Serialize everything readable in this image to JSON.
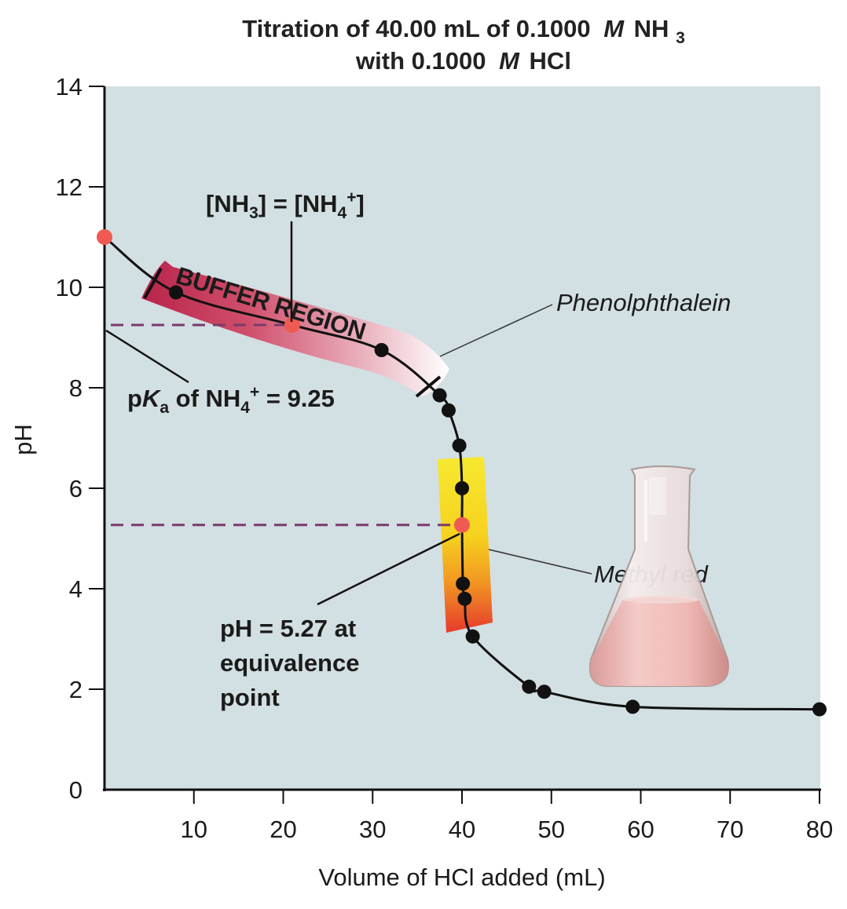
{
  "chart_data": {
    "type": "line",
    "title_line1": "Titration of 40.00 mL of 0.1000",
    "title_line2": "with 0.1000",
    "title_molar": "M",
    "title_nh3": "NH",
    "title_nh3_sub": "3",
    "title_hcl": "HCl",
    "xlabel": "Volume of HCl added (mL)",
    "ylabel": "pH",
    "xlim": [
      0,
      80
    ],
    "ylim": [
      0,
      14
    ],
    "x_ticks": [
      10,
      20,
      30,
      40,
      50,
      60,
      70,
      80
    ],
    "y_ticks": [
      0,
      2,
      4,
      6,
      8,
      10,
      12,
      14
    ],
    "x_tick_labels": [
      "10",
      "20",
      "30",
      "40",
      "50",
      "60",
      "70",
      "80"
    ],
    "y_tick_labels": [
      "0",
      "2",
      "4",
      "6",
      "8",
      "10",
      "12",
      "14"
    ],
    "series": [
      {
        "name": "Titration curve",
        "x": [
          0,
          8,
          21,
          31,
          37.5,
          38.5,
          39.7,
          40.0,
          40.0,
          40.1,
          40.3,
          41.2,
          47.5,
          49.2,
          59.1,
          80
        ],
        "y": [
          11.0,
          9.9,
          9.25,
          8.75,
          7.85,
          7.55,
          6.85,
          6.0,
          5.27,
          4.1,
          3.8,
          3.05,
          2.05,
          1.95,
          1.65,
          1.6
        ],
        "highlighted_points": [
          {
            "x": 0,
            "y": 11.0
          },
          {
            "x": 21,
            "y": 9.25
          },
          {
            "x": 40.0,
            "y": 5.27
          }
        ]
      }
    ],
    "pka_value": 9.25,
    "equivalence_ph": 5.27,
    "equivalence_volume": 40.0,
    "annotations": {
      "buffer_region": "BUFFER REGION",
      "half_equiv": "[NH3] = [NH4+]",
      "half_equiv_nh": "[NH",
      "half_equiv_sub3": "3",
      "half_equiv_eq": "] = [NH",
      "half_equiv_sub4": "4",
      "half_equiv_sup": "+",
      "half_equiv_close": "]",
      "pka_p": "p",
      "pka_K": "K",
      "pka_sub_a": "a",
      "pka_of": " of NH",
      "pka_sub4": "4",
      "pka_sup": "+",
      "pka_eq": " = 9.25",
      "phenolphthalein": "Phenolphthalein",
      "methyl_red": "Methyl red",
      "equiv_line1": "pH = 5.27 at",
      "equiv_line2": "equivalence",
      "equiv_line3": "point"
    },
    "colors": {
      "background": "#d2dfe3",
      "curve": "#111111",
      "highlight_point": "#ef5b52",
      "dashed": "#7a3a6e",
      "buffer_band": "#c43a57",
      "methyl_red_top": "#f6e62c",
      "methyl_red_bottom": "#ea3b2c"
    }
  }
}
